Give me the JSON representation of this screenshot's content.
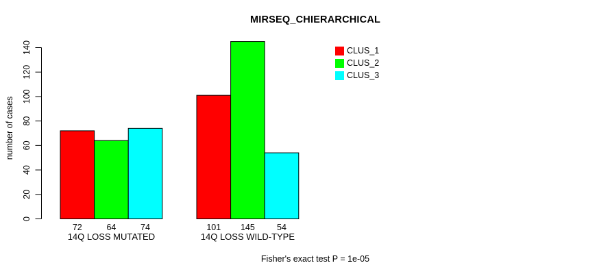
{
  "page": {
    "background": "#ffffff",
    "text_color": "#000000"
  },
  "chart_data": {
    "type": "bar",
    "title": "MIRSEQ_CHIERARCHICAL",
    "ylabel": "number of cases",
    "xlabel": "",
    "categories": [
      "14Q LOSS MUTATED",
      "14Q LOSS WILD-TYPE"
    ],
    "series": [
      {
        "name": "CLUS_1",
        "color": "#ff0000",
        "values": [
          72,
          101
        ]
      },
      {
        "name": "CLUS_2",
        "color": "#00ff00",
        "values": [
          64,
          145
        ]
      },
      {
        "name": "CLUS_3",
        "color": "#00ffff",
        "values": [
          74,
          54
        ]
      }
    ],
    "ylim": [
      0,
      140
    ],
    "yticks": [
      0,
      20,
      40,
      60,
      80,
      100,
      120,
      140
    ],
    "grid": false,
    "legend_position": "top-right",
    "bar_border_color": "#000000",
    "axis_color": "#000000",
    "value_labels_shown": true,
    "annotation": "Fisher's exact test P = 1e-05"
  }
}
